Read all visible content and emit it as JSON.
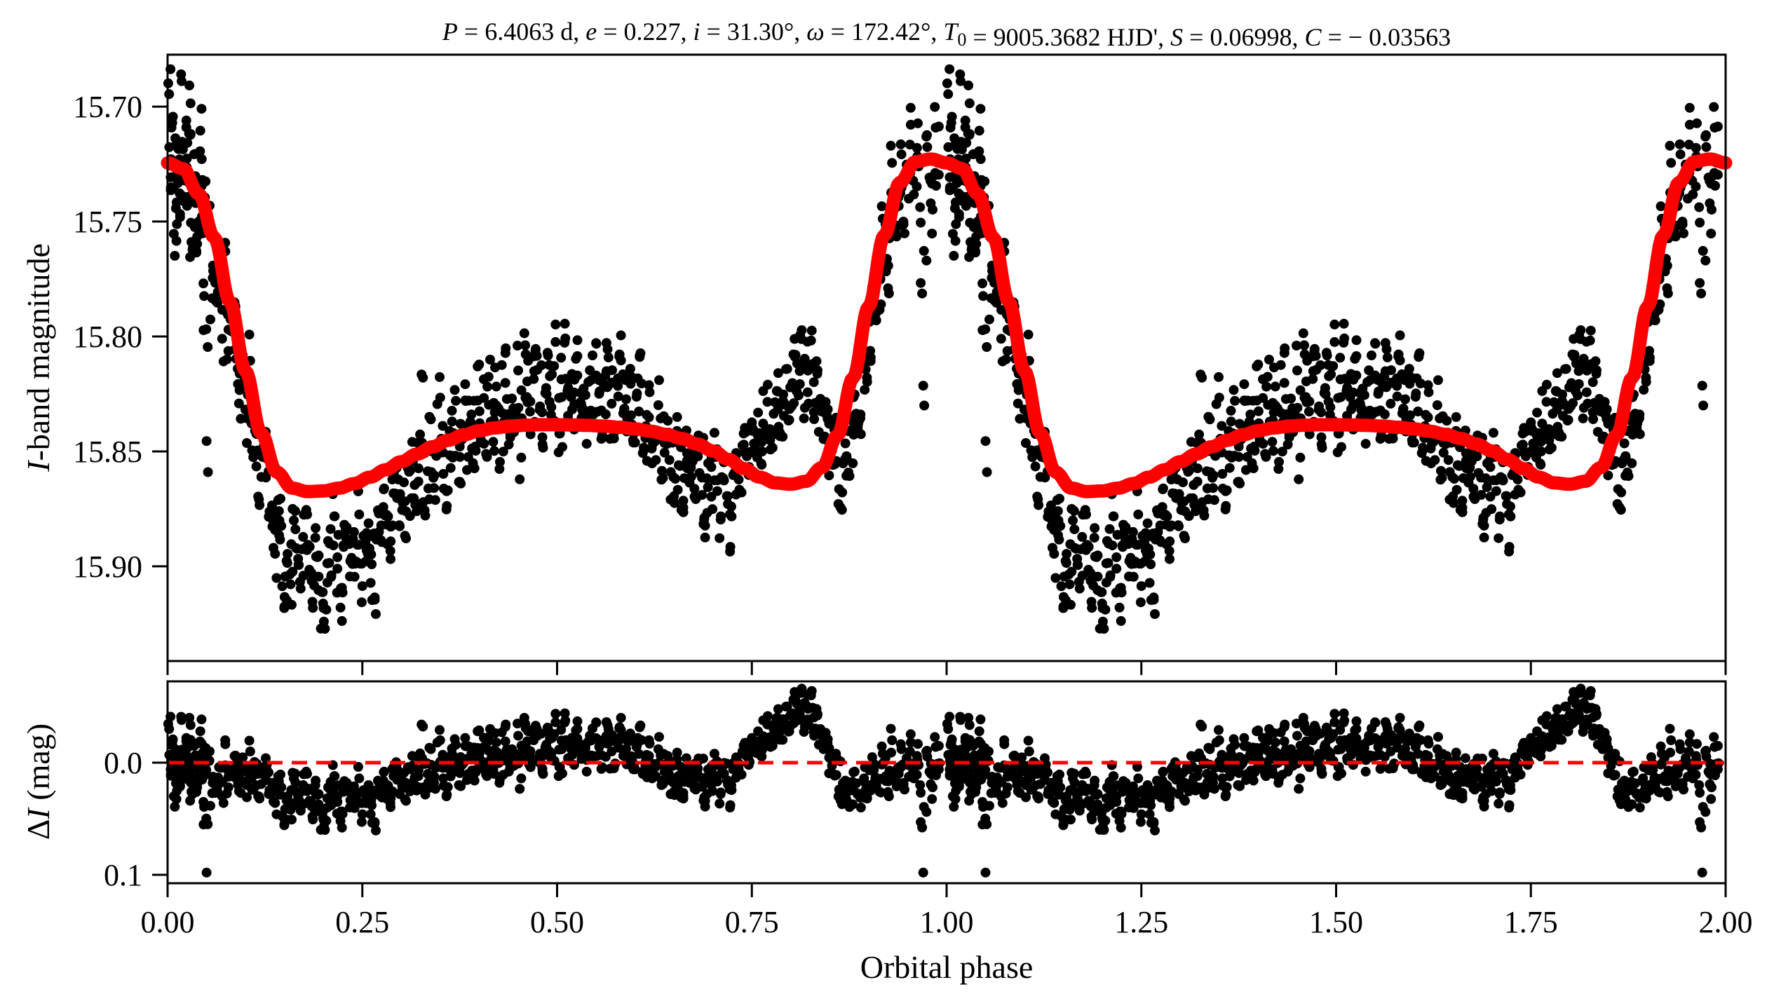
{
  "chart_data": [
    {
      "panel": "light-curve",
      "type": "scatter",
      "title": "P = 6.4063 d, e = 0.227, i = 31.30°, ω = 172.42°, T0 = 9005.3682 HJD', S = 0.06998, C = −0.03563",
      "title_parts": [
        {
          "t": "P",
          "i": true
        },
        {
          "t": " = 6.4063 d, "
        },
        {
          "t": "e",
          "i": true
        },
        {
          "t": " = 0.227, "
        },
        {
          "t": "i",
          "i": true
        },
        {
          "t": " = 31.30°, "
        },
        {
          "t": "ω",
          "i": true
        },
        {
          "t": " = 172.42°, "
        },
        {
          "t": "T",
          "i": true
        },
        {
          "t": "0",
          "sub": true
        },
        {
          "t": " = 9005.3682 HJD', "
        },
        {
          "t": "S",
          "i": true
        },
        {
          "t": " = 0.06998, "
        },
        {
          "t": "C",
          "i": true
        },
        {
          "t": " = − 0.03563"
        }
      ],
      "xlabel": "Orbital phase",
      "ylabel_italic": "I",
      "ylabel_rest": "-band magnitude",
      "xlim": [
        0.0,
        2.0
      ],
      "ylim": [
        15.9412,
        15.6774
      ],
      "y_inverted": true,
      "yticks": [
        15.7,
        15.75,
        15.8,
        15.85,
        15.9
      ],
      "ytick_labels": [
        "15.70",
        "15.75",
        "15.80",
        "15.85",
        "15.90"
      ],
      "xticks": [
        0.0,
        0.25,
        0.5,
        0.75,
        1.0,
        1.25,
        1.5,
        1.75,
        2.0
      ],
      "grid": false,
      "legend": "none",
      "model": {
        "name": "heartbeat model",
        "color": "#ff0000",
        "phase": [
          0.0,
          0.02,
          0.04,
          0.06,
          0.08,
          0.1,
          0.12,
          0.14,
          0.16,
          0.18,
          0.2,
          0.22,
          0.24,
          0.26,
          0.28,
          0.3,
          0.32,
          0.34,
          0.36,
          0.38,
          0.4,
          0.42,
          0.44,
          0.46,
          0.48,
          0.5,
          0.52,
          0.54,
          0.56,
          0.58,
          0.6,
          0.62,
          0.64,
          0.66,
          0.68,
          0.7,
          0.72,
          0.74,
          0.76,
          0.78,
          0.8,
          0.82,
          0.84,
          0.86,
          0.88,
          0.9,
          0.92,
          0.94,
          0.96,
          0.98,
          1.0
        ],
        "mag": [
          15.7245,
          15.727,
          15.738,
          15.757,
          15.785,
          15.815,
          15.842,
          15.859,
          15.866,
          15.8675,
          15.8672,
          15.866,
          15.864,
          15.8612,
          15.858,
          15.8545,
          15.8512,
          15.848,
          15.8452,
          15.8428,
          15.841,
          15.8398,
          15.839,
          15.8386,
          15.8384,
          15.8384,
          15.8385,
          15.8387,
          15.839,
          15.8395,
          15.8402,
          15.8412,
          15.8426,
          15.8444,
          15.8468,
          15.8498,
          15.8535,
          15.8575,
          15.8612,
          15.8637,
          15.8643,
          15.863,
          15.857,
          15.843,
          15.818,
          15.787,
          15.756,
          15.733,
          15.724,
          15.7228,
          15.7245
        ]
      },
      "observations_one_cycle": {
        "color": "#000000",
        "note": "points repeat at phase + 1",
        "phase": [
          0.002,
          0.004,
          0.006,
          0.008,
          0.01,
          0.012,
          0.014,
          0.016,
          0.018,
          0.02,
          0.022,
          0.024,
          0.026,
          0.028,
          0.03,
          0.032,
          0.034,
          0.036,
          0.038,
          0.04,
          0.042,
          0.044,
          0.046,
          0.048,
          0.05,
          0.054,
          0.058,
          0.062,
          0.066,
          0.07,
          0.074,
          0.078,
          0.082,
          0.086,
          0.09,
          0.094,
          0.098,
          0.102,
          0.106,
          0.11,
          0.114,
          0.118,
          0.122,
          0.126,
          0.13,
          0.134,
          0.138,
          0.142,
          0.146,
          0.15,
          0.154,
          0.158,
          0.162,
          0.166,
          0.17,
          0.174,
          0.178,
          0.182,
          0.186,
          0.19,
          0.194,
          0.198,
          0.202,
          0.206,
          0.21,
          0.214,
          0.218,
          0.222,
          0.226,
          0.23,
          0.234,
          0.238,
          0.242,
          0.246,
          0.25,
          0.254,
          0.258,
          0.262,
          0.266,
          0.27,
          0.274,
          0.278,
          0.282,
          0.286,
          0.29,
          0.294,
          0.298,
          0.302,
          0.306,
          0.31,
          0.314,
          0.318,
          0.322,
          0.326,
          0.33,
          0.334,
          0.338,
          0.342,
          0.346,
          0.35,
          0.354,
          0.358,
          0.362,
          0.366,
          0.37,
          0.374,
          0.378,
          0.382,
          0.386,
          0.39,
          0.394,
          0.398,
          0.402,
          0.406,
          0.41,
          0.414,
          0.418,
          0.422,
          0.426,
          0.43,
          0.434,
          0.438,
          0.442,
          0.446,
          0.45,
          0.454,
          0.458,
          0.462,
          0.466,
          0.47,
          0.474,
          0.478,
          0.482,
          0.486,
          0.49,
          0.494,
          0.498,
          0.502,
          0.506,
          0.51,
          0.514,
          0.518,
          0.522,
          0.526,
          0.53,
          0.534,
          0.538,
          0.542,
          0.546,
          0.55,
          0.554,
          0.558,
          0.562,
          0.566,
          0.57,
          0.574,
          0.578,
          0.582,
          0.586,
          0.59,
          0.594,
          0.598,
          0.602,
          0.606,
          0.61,
          0.614,
          0.618,
          0.622,
          0.626,
          0.63,
          0.634,
          0.638,
          0.642,
          0.646,
          0.65,
          0.654,
          0.658,
          0.662,
          0.666,
          0.67,
          0.674,
          0.678,
          0.682,
          0.686,
          0.69,
          0.694,
          0.698,
          0.702,
          0.706,
          0.71,
          0.714,
          0.718,
          0.722,
          0.726,
          0.73,
          0.734,
          0.738,
          0.742,
          0.746,
          0.75,
          0.754,
          0.758,
          0.762,
          0.766,
          0.77,
          0.774,
          0.778,
          0.782,
          0.786,
          0.79,
          0.794,
          0.798,
          0.802,
          0.806,
          0.81,
          0.814,
          0.818,
          0.822,
          0.826,
          0.83,
          0.834,
          0.838,
          0.842,
          0.846,
          0.85,
          0.854,
          0.858,
          0.862,
          0.866,
          0.87,
          0.874,
          0.878,
          0.882,
          0.886,
          0.89,
          0.894,
          0.898,
          0.902,
          0.906,
          0.91,
          0.914,
          0.918,
          0.922,
          0.926,
          0.93,
          0.934,
          0.938,
          0.942,
          0.946,
          0.95,
          0.954,
          0.958,
          0.962,
          0.966,
          0.97,
          0.974,
          0.978,
          0.982,
          0.986,
          0.99,
          0.994,
          0.998
        ],
        "residual": [
          -0.03,
          0.006,
          -0.018,
          0.03,
          -0.012,
          0.025,
          -0.008,
          0.02,
          -0.038,
          0.014,
          0.002,
          -0.022,
          0.01,
          -0.04,
          0.018,
          0.028,
          -0.015,
          0.005,
          0.022,
          0.012,
          -0.028,
          0.008,
          0.035,
          -0.005,
          0.098,
          -0.01,
          0.018,
          0.026,
          0.004,
          0.03,
          -0.02,
          0.022,
          0.012,
          -0.006,
          0.014,
          0.027,
          0.002,
          0.02,
          -0.01,
          0.024,
          0.006,
          0.032,
          0.01,
          -0.004,
          0.028,
          0.018,
          0.036,
          0.012,
          0.022,
          0.055,
          0.03,
          0.042,
          0.014,
          0.026,
          0.04,
          0.02,
          0.008,
          0.034,
          0.048,
          0.016,
          0.028,
          0.044,
          0.06,
          0.022,
          0.038,
          0.012,
          0.03,
          0.052,
          0.026,
          0.018,
          0.04,
          0.024,
          0.034,
          0.014,
          0.046,
          0.028,
          0.02,
          0.038,
          0.054,
          0.016,
          0.03,
          0.008,
          0.024,
          0.036,
          0.012,
          0.002,
          0.028,
          0.018,
          0.034,
          0.006,
          -0.006,
          0.022,
          0.012,
          -0.034,
          0.026,
          0.01,
          -0.012,
          0.018,
          0.004,
          -0.02,
          0.014,
          0.03,
          -0.004,
          0.008,
          -0.016,
          0.02,
          0.002,
          -0.022,
          0.01,
          -0.008,
          0.016,
          -0.028,
          0.004,
          -0.014,
          0.012,
          -0.03,
          0.006,
          -0.018,
          0.018,
          -0.006,
          -0.034,
          0.008,
          -0.012,
          0.0,
          -0.024,
          0.014,
          -0.04,
          -0.01,
          0.004,
          -0.02,
          -0.03,
          -0.008,
          0.01,
          -0.016,
          -0.026,
          -0.002,
          -0.036,
          0.012,
          -0.012,
          -0.044,
          -0.004,
          -0.02,
          0.002,
          -0.03,
          -0.01,
          -0.016,
          0.008,
          -0.024,
          -0.006,
          -0.036,
          -0.014,
          0.004,
          -0.022,
          -0.03,
          -0.01,
          0.002,
          -0.018,
          -0.04,
          -0.008,
          -0.004,
          -0.026,
          0.006,
          -0.014,
          -0.032,
          0.01,
          -0.002,
          -0.02,
          0.014,
          0.004,
          -0.012,
          0.02,
          0.008,
          -0.006,
          0.016,
          0.026,
          0.002,
          0.012,
          0.03,
          -0.004,
          0.018,
          0.008,
          0.024,
          -0.002,
          0.014,
          0.034,
          0.006,
          0.02,
          -0.008,
          0.012,
          0.028,
          0.002,
          0.016,
          0.04,
          0.006,
          -0.004,
          0.01,
          -0.01,
          -0.016,
          0.002,
          -0.022,
          -0.012,
          -0.028,
          -0.006,
          -0.02,
          -0.034,
          -0.014,
          -0.03,
          -0.04,
          -0.022,
          -0.036,
          -0.05,
          -0.028,
          -0.044,
          -0.056,
          -0.038,
          -0.066,
          -0.032,
          -0.048,
          -0.06,
          -0.024,
          -0.042,
          -0.03,
          -0.012,
          -0.02,
          -0.004,
          0.01,
          -0.008,
          0.024,
          0.03,
          0.016,
          0.036,
          0.022,
          0.008,
          0.028,
          0.04,
          0.014,
          0.032,
          0.02,
          0.004,
          0.018,
          0.026,
          -0.008,
          0.012,
          0.03,
          -0.02,
          0.016,
          0.006,
          -0.012,
          0.024,
          0.002,
          -0.018,
          0.014,
          -0.006,
          0.02,
          0.098,
          -0.01,
          0.008,
          0.022,
          -0.014,
          0.006
        ]
      }
    },
    {
      "panel": "residuals",
      "type": "scatter",
      "ylabel_prefix": "Δ",
      "ylabel_italic": "I",
      "ylabel_rest": " (mag)",
      "xlabel": "Orbital phase",
      "xlim": [
        0.0,
        2.0
      ],
      "ylim": [
        0.1075,
        -0.0725
      ],
      "y_inverted": true,
      "yticks": [
        0.0,
        0.1
      ],
      "ytick_labels": [
        "0.0",
        "0.1"
      ],
      "xticks": [
        0.0,
        0.25,
        0.5,
        0.75,
        1.0,
        1.25,
        1.5,
        1.75,
        2.0
      ],
      "xtick_labels": [
        "0.00",
        "0.25",
        "0.50",
        "0.75",
        "1.00",
        "1.25",
        "1.50",
        "1.75",
        "2.00"
      ],
      "zero_line": {
        "value": 0.0,
        "color": "#ff0000",
        "style": "dashed"
      },
      "grid": false,
      "legend": "none"
    }
  ]
}
